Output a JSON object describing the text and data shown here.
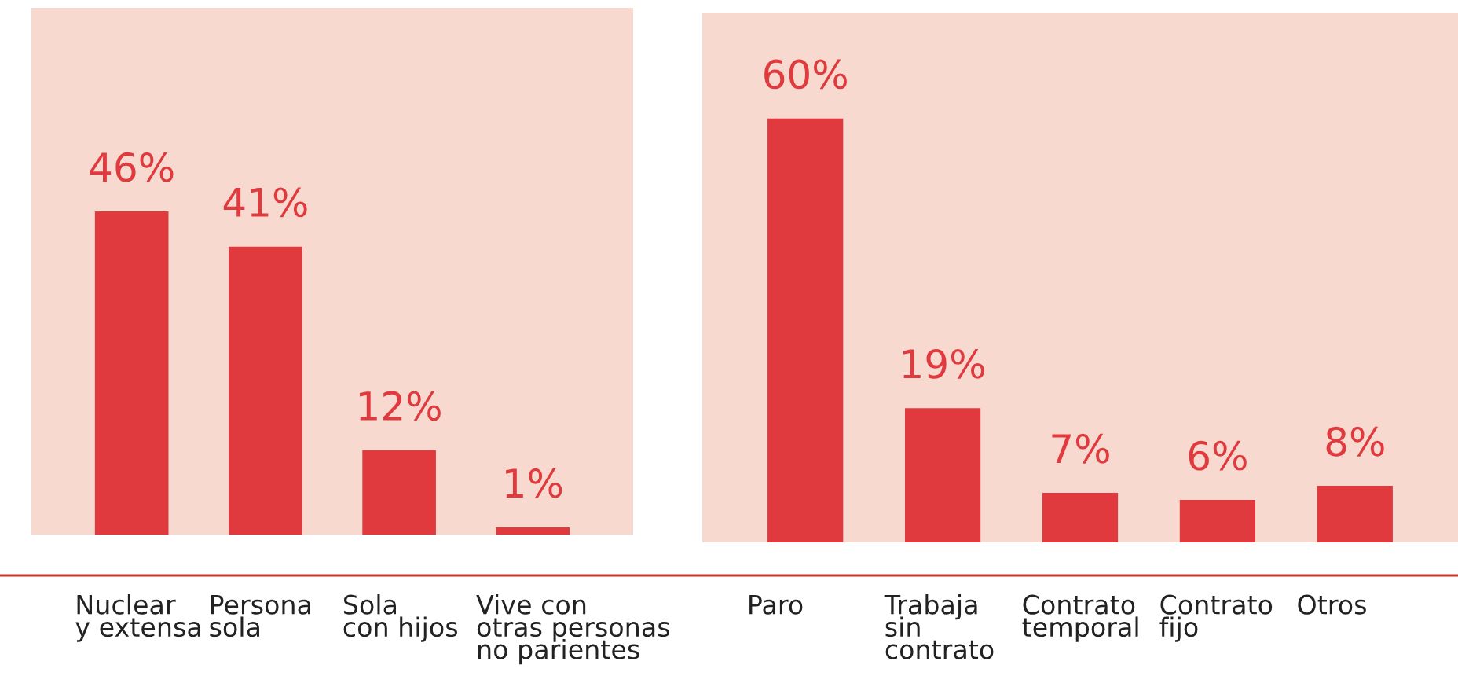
{
  "chart_data": [
    {
      "type": "bar",
      "categories": [
        "Nuclear\ny extensa",
        "Persona\nsola",
        "Sola\ncon hijos",
        "Vive con\notras personas\nno parientes"
      ],
      "values": [
        46,
        41,
        12,
        1
      ],
      "value_labels": [
        "46%",
        "41%",
        "12%",
        "1%"
      ],
      "color": "#e03a3e",
      "ylim": [
        0,
        75
      ],
      "tick_labels": false
    },
    {
      "type": "bar",
      "categories": [
        "Paro",
        "Trabaja\nsin\ncontrato",
        "Contrato\ntemporal",
        "Contrato\nfijo",
        "Otros"
      ],
      "values": [
        60,
        19,
        7,
        6,
        8
      ],
      "value_labels": [
        "60%",
        "19%",
        "7%",
        "6%",
        "8%"
      ],
      "color": "#e03a3e",
      "ylim": [
        0,
        75
      ],
      "tick_labels": false
    }
  ]
}
